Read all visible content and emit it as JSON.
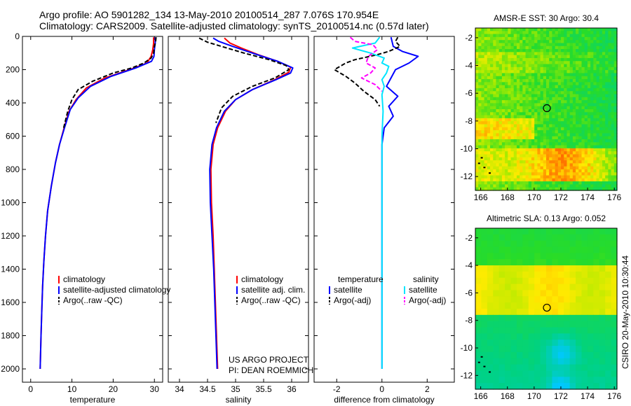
{
  "header": {
    "line1": "Argo profile: AO 5901282_134 13-May-2010 20100514_287 7.076S 170.954E",
    "line2": "Climatology: CARS2009. Satellite-adjusted climatology: synTS_20100514.nc (0.57d later)"
  },
  "side_stamp": "CSIRO 20-May-2010 10:30:44",
  "colors": {
    "climatology": "#ff0000",
    "satellite": "#0000ff",
    "argo": "#000000",
    "sal_satellite": "#00e5ff",
    "sal_argo": "#ff00ff"
  },
  "chart_data": [
    {
      "type": "line",
      "xlabel": "temperature",
      "ylabel": "",
      "xlim": [
        -2,
        32
      ],
      "ylim": [
        2080,
        0
      ],
      "xticks": [
        0,
        10,
        20,
        30
      ],
      "yticks": [
        0,
        200,
        400,
        600,
        800,
        1000,
        1200,
        1400,
        1600,
        1800,
        2000
      ],
      "legend": [
        "climatology",
        "satellite-adjusted climatology",
        "Argo(..raw -QC)"
      ],
      "series": [
        {
          "name": "climatology",
          "color": "#ff0000",
          "dash": false,
          "points": [
            [
              29.8,
              5
            ],
            [
              29.8,
              40
            ],
            [
              29.6,
              80
            ],
            [
              29.2,
              120
            ],
            [
              28.2,
              160
            ],
            [
              24,
              200
            ],
            [
              18,
              250
            ],
            [
              13.5,
              310
            ],
            [
              11,
              380
            ],
            [
              9.3,
              450
            ],
            [
              8.1,
              550
            ],
            [
              7,
              650
            ],
            [
              6,
              760
            ],
            [
              5,
              900
            ],
            [
              4.1,
              1050
            ],
            [
              3.6,
              1200
            ],
            [
              3.2,
              1350
            ],
            [
              2.9,
              1500
            ],
            [
              2.7,
              1650
            ],
            [
              2.5,
              1800
            ],
            [
              2.3,
              2000
            ]
          ]
        },
        {
          "name": "satellite-adjusted climatology",
          "color": "#0000ff",
          "dash": false,
          "points": [
            [
              30.2,
              5
            ],
            [
              30.2,
              40
            ],
            [
              30,
              80
            ],
            [
              29.9,
              120
            ],
            [
              29.3,
              150
            ],
            [
              25.5,
              190
            ],
            [
              19.5,
              240
            ],
            [
              14.5,
              300
            ],
            [
              11.5,
              370
            ],
            [
              9.6,
              440
            ],
            [
              8.2,
              550
            ],
            [
              7,
              650
            ],
            [
              6,
              760
            ],
            [
              5,
              900
            ],
            [
              4.1,
              1050
            ],
            [
              3.6,
              1200
            ],
            [
              3.2,
              1350
            ],
            [
              2.9,
              1500
            ],
            [
              2.7,
              1650
            ],
            [
              2.5,
              1800
            ],
            [
              2.3,
              2000
            ]
          ]
        },
        {
          "name": "Argo(..raw -QC)",
          "color": "#000000",
          "dash": true,
          "points": [
            [
              30.4,
              5
            ],
            [
              30.3,
              30
            ],
            [
              30,
              60
            ],
            [
              29.8,
              100
            ],
            [
              29.2,
              130
            ],
            [
              27.5,
              160
            ],
            [
              24.5,
              190
            ],
            [
              20,
              220
            ],
            [
              15,
              270
            ],
            [
              11.5,
              320
            ],
            [
              10,
              380
            ],
            [
              9,
              450
            ],
            [
              8,
              550
            ]
          ]
        }
      ]
    },
    {
      "type": "line",
      "xlabel": "salinity",
      "ylabel": "",
      "xlim": [
        33.8,
        36.3
      ],
      "ylim": [
        2080,
        0
      ],
      "xticks": [
        34,
        34.5,
        35,
        35.5,
        36
      ],
      "legend": [
        "climatology",
        "satellite adj. clim.",
        "Argo(..raw -QC)"
      ],
      "annotation": [
        "US ARGO PROJECT",
        "PI: DEAN ROEMMICH"
      ],
      "series": [
        {
          "name": "climatology",
          "color": "#ff0000",
          "dash": false,
          "points": [
            [
              34.8,
              10
            ],
            [
              34.9,
              40
            ],
            [
              35.1,
              70
            ],
            [
              35.4,
              110
            ],
            [
              35.75,
              150
            ],
            [
              35.98,
              185
            ],
            [
              35.95,
              215
            ],
            [
              35.7,
              260
            ],
            [
              35.3,
              320
            ],
            [
              35,
              380
            ],
            [
              34.82,
              450
            ],
            [
              34.68,
              550
            ],
            [
              34.6,
              650
            ],
            [
              34.56,
              800
            ],
            [
              34.57,
              1000
            ],
            [
              34.6,
              1200
            ],
            [
              34.62,
              1400
            ],
            [
              34.64,
              1600
            ],
            [
              34.66,
              1800
            ],
            [
              34.68,
              2000
            ]
          ]
        },
        {
          "name": "satellite adj. clim.",
          "color": "#0000ff",
          "dash": false,
          "points": [
            [
              34.6,
              10
            ],
            [
              34.7,
              30
            ],
            [
              34.95,
              60
            ],
            [
              35.3,
              100
            ],
            [
              35.75,
              150
            ],
            [
              36.02,
              190
            ],
            [
              35.98,
              220
            ],
            [
              35.72,
              260
            ],
            [
              35.3,
              320
            ],
            [
              35,
              380
            ],
            [
              34.8,
              450
            ],
            [
              34.66,
              550
            ],
            [
              34.58,
              650
            ],
            [
              34.54,
              800
            ],
            [
              34.55,
              1000
            ],
            [
              34.58,
              1200
            ],
            [
              34.61,
              1400
            ],
            [
              34.63,
              1600
            ],
            [
              34.65,
              1800
            ],
            [
              34.67,
              2000
            ]
          ]
        },
        {
          "name": "Argo(..raw -QC)",
          "color": "#000000",
          "dash": true,
          "points": [
            [
              34.35,
              10
            ],
            [
              34.5,
              35
            ],
            [
              34.75,
              60
            ],
            [
              35.15,
              100
            ],
            [
              35.6,
              140
            ],
            [
              35.9,
              175
            ],
            [
              35.95,
              200
            ],
            [
              35.7,
              250
            ],
            [
              35.3,
              300
            ],
            [
              34.95,
              360
            ],
            [
              34.75,
              430
            ],
            [
              34.65,
              520
            ]
          ]
        }
      ]
    },
    {
      "type": "line",
      "xlabel": "difference from climatology",
      "ylabel": "",
      "xlim": [
        -3,
        3.2
      ],
      "ylim": [
        2080,
        0
      ],
      "xticks": [
        -2,
        0,
        2
      ],
      "legend_groups": [
        {
          "title": "temperature",
          "items": [
            "satellite",
            "Argo(-adj)"
          ]
        },
        {
          "title": "salinity",
          "items": [
            "satellite",
            "Argo(-adj)"
          ]
        }
      ],
      "series": [
        {
          "name": "temperature satellite",
          "color": "#0000ff",
          "dash": false,
          "points": [
            [
              0.4,
              5
            ],
            [
              0.5,
              60
            ],
            [
              0.9,
              90
            ],
            [
              1.6,
              120
            ],
            [
              1.2,
              160
            ],
            [
              0.6,
              200
            ],
            [
              0.4,
              250
            ],
            [
              0.2,
              300
            ],
            [
              0.7,
              360
            ],
            [
              0.3,
              420
            ],
            [
              0.5,
              480
            ],
            [
              0.1,
              550
            ],
            [
              0,
              650
            ],
            [
              0,
              2000
            ]
          ]
        },
        {
          "name": "temperature Argo(-adj)",
          "color": "#000000",
          "dash": true,
          "points": [
            [
              0.7,
              5
            ],
            [
              0.6,
              30
            ],
            [
              0.8,
              60
            ],
            [
              0.3,
              90
            ],
            [
              -0.2,
              110
            ],
            [
              -1.2,
              140
            ],
            [
              -1.6,
              160
            ],
            [
              -2.1,
              200
            ],
            [
              -1.6,
              240
            ],
            [
              -1.2,
              280
            ],
            [
              -0.8,
              330
            ],
            [
              -0.3,
              380
            ],
            [
              -0.1,
              420
            ]
          ]
        },
        {
          "name": "salinity satellite",
          "color": "#00e5ff",
          "dash": false,
          "points": [
            [
              -0.1,
              5
            ],
            [
              -0.3,
              40
            ],
            [
              -1.3,
              70
            ],
            [
              -0.5,
              100
            ],
            [
              0.1,
              130
            ],
            [
              0,
              160
            ],
            [
              0.3,
              180
            ],
            [
              0.2,
              220
            ],
            [
              0,
              260
            ],
            [
              0.1,
              300
            ],
            [
              0,
              350
            ],
            [
              0.05,
              450
            ],
            [
              0,
              600
            ],
            [
              0,
              2000
            ]
          ]
        },
        {
          "name": "salinity Argo(-adj)",
          "color": "#ff00ff",
          "dash": true,
          "points": [
            [
              -1.4,
              5
            ],
            [
              -1.2,
              30
            ],
            [
              -0.4,
              50
            ],
            [
              -0.2,
              80
            ],
            [
              -0.6,
              120
            ],
            [
              -0.7,
              160
            ],
            [
              -0.3,
              190
            ],
            [
              -0.5,
              220
            ],
            [
              -0.9,
              250
            ],
            [
              -0.3,
              290
            ],
            [
              0,
              330
            ]
          ]
        }
      ]
    },
    {
      "type": "heatmap",
      "title": "AMSR-E SST: 30 Argo: 30.4",
      "xlim": [
        165.6,
        176.2
      ],
      "ylim": [
        -13,
        -1.3
      ],
      "xticks": [
        166,
        168,
        170,
        172,
        174,
        176
      ],
      "yticks": [
        -2,
        -4,
        -6,
        -8,
        -10,
        -12
      ],
      "marker": [
        170.954,
        -7.076
      ]
    },
    {
      "type": "heatmap",
      "title": "Altimetric SLA: 0.13 Argo: 0.052",
      "xlim": [
        165.6,
        176.2
      ],
      "ylim": [
        -13,
        -1.3
      ],
      "xticks": [
        166,
        168,
        170,
        172,
        174,
        176
      ],
      "yticks": [
        -2,
        -4,
        -6,
        -8,
        -10,
        -12
      ],
      "marker": [
        170.954,
        -7.076
      ]
    }
  ]
}
